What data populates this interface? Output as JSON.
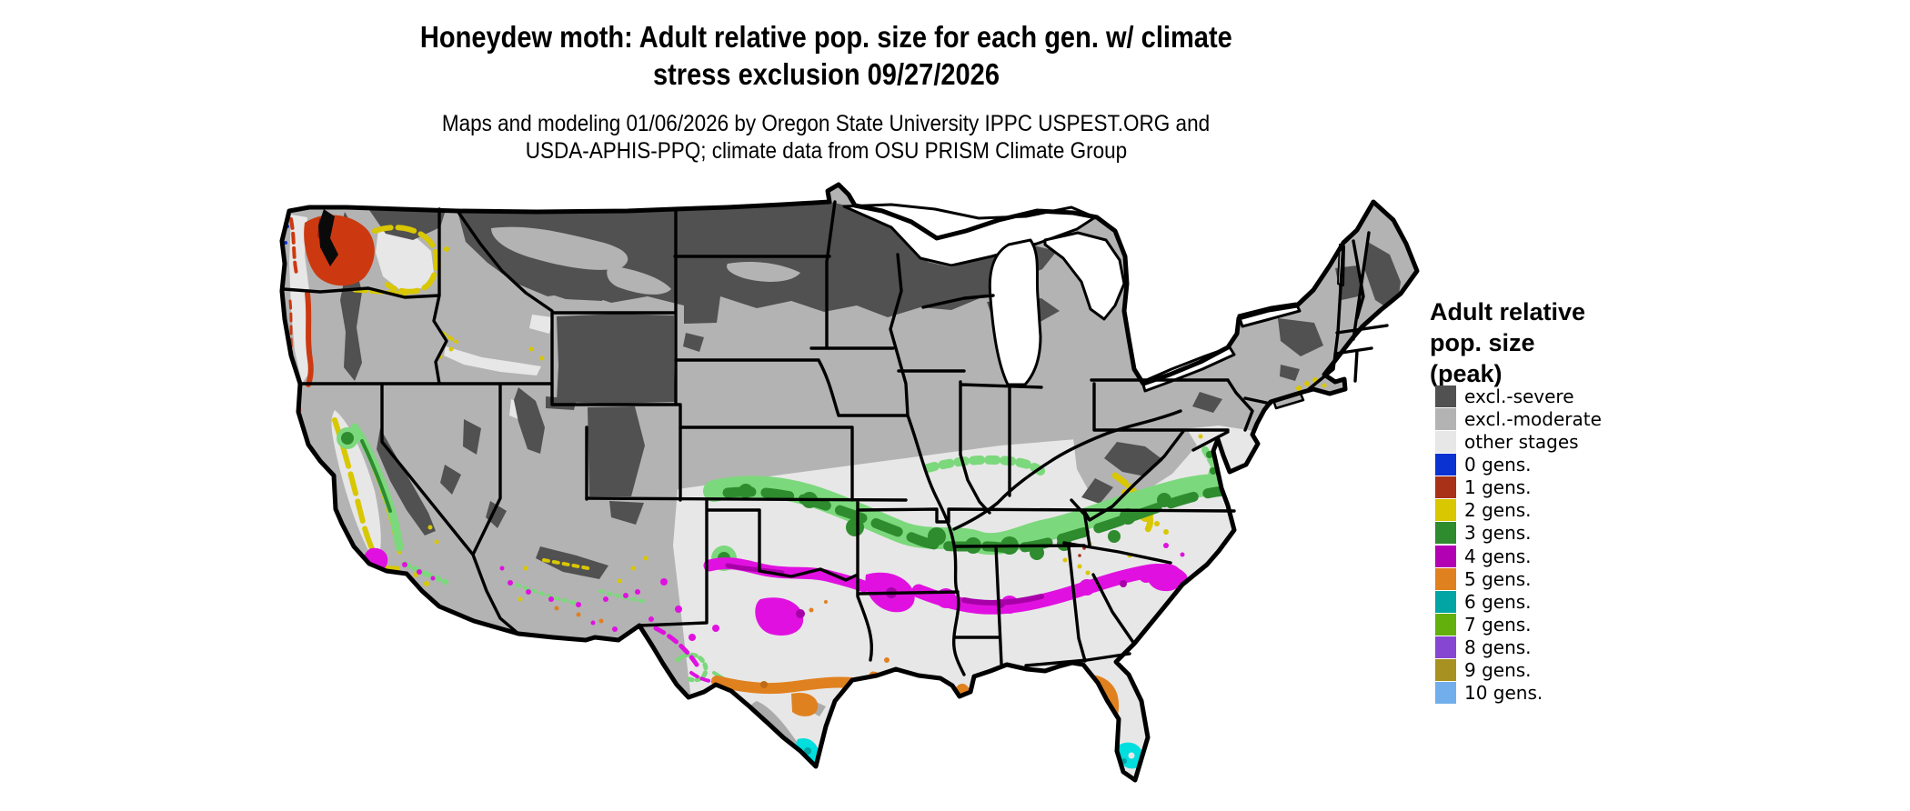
{
  "title": {
    "line1": "Honeydew moth: Adult relative pop. size for each gen. w/ climate",
    "line2": "stress exclusion 09/27/2026"
  },
  "subtitle": {
    "line1": "Maps and modeling 01/06/2026 by Oregon State University IPPC USPEST.ORG and",
    "line2": "USDA-APHIS-PPQ; climate data from OSU PRISM Climate Group"
  },
  "legend": {
    "title": "Adult relative\npop. size\n(peak)",
    "items": [
      {
        "label": "excl.-severe",
        "color": "#515151"
      },
      {
        "label": "excl.-moderate",
        "color": "#b3b3b3"
      },
      {
        "label": "other stages",
        "color": "#e7e7e7"
      },
      {
        "label": "0 gens.",
        "color": "#0a31d1"
      },
      {
        "label": "1 gens.",
        "color": "#a93118"
      },
      {
        "label": "2 gens.",
        "color": "#d8c701"
      },
      {
        "label": "3 gens.",
        "color": "#2e8b2e"
      },
      {
        "label": "4 gens.",
        "color": "#b201b2"
      },
      {
        "label": "5 gens.",
        "color": "#e0811f"
      },
      {
        "label": "6 gens.",
        "color": "#02a4a4"
      },
      {
        "label": "7 gens.",
        "color": "#63b00d"
      },
      {
        "label": "8 gens.",
        "color": "#8746d2"
      },
      {
        "label": "9 gens.",
        "color": "#a79221"
      },
      {
        "label": "10 gens.",
        "color": "#72aeeb"
      }
    ]
  },
  "map": {
    "palette": {
      "excl_severe": "#515151",
      "excl_moderate": "#b3b3b3",
      "other_stages": "#e7e7e7",
      "gens_1_map": "#cc3911",
      "gens_2_map": "#d8c701",
      "gens_3_map": "#2e8b2e",
      "gens_3_light": "#7cd87c",
      "gens_4_map": "#e011e0",
      "gens_5_map": "#e0811f",
      "gens_6_map": "#00dede",
      "gens_7_map": "#63b00d",
      "state_border": "#000000",
      "water": "#ffffff"
    }
  }
}
